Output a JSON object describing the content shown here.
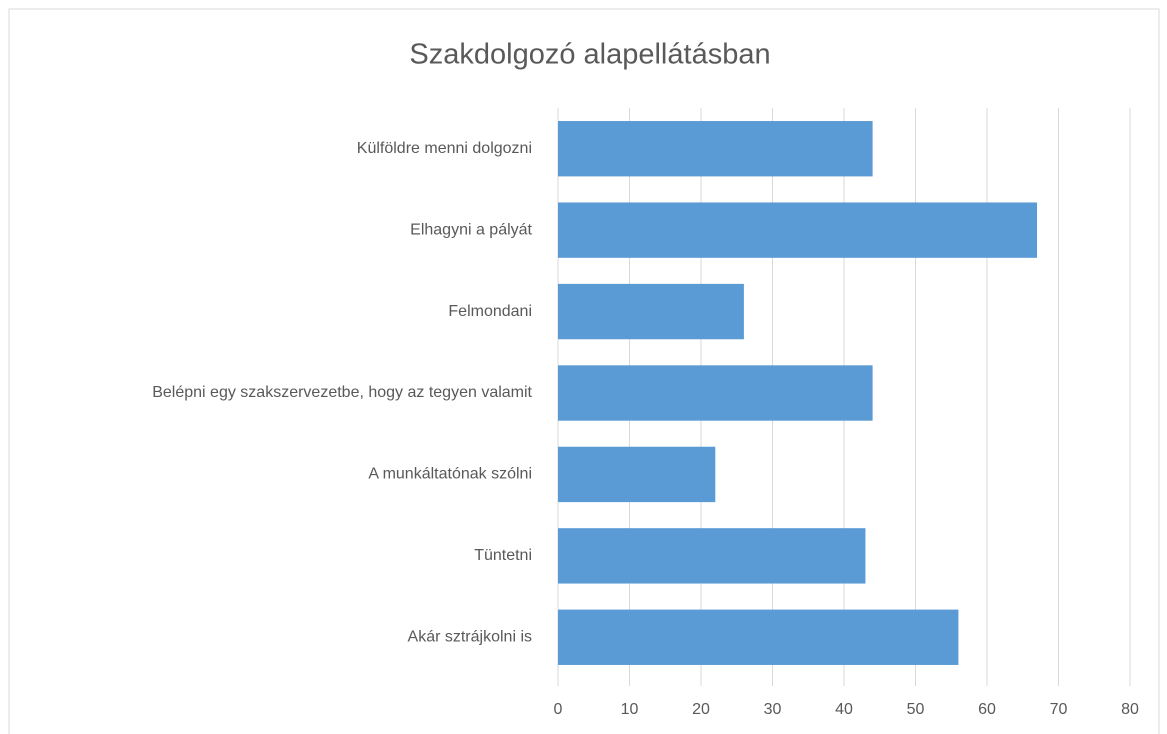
{
  "chart_data": {
    "type": "bar",
    "orientation": "horizontal",
    "title": "Szakdolgozó alapellátásban",
    "categories": [
      "Külföldre menni dolgozni",
      "Elhagyni a pályát",
      "Felmondani",
      "Belépni egy szakszervezetbe, hogy az tegyen valamit",
      "A munkáltatónak szólni",
      "Tüntetni",
      "Akár sztrájkolni is"
    ],
    "values": [
      44,
      67,
      26,
      44,
      22,
      43,
      56
    ],
    "color": "#5b9bd5",
    "xlim": [
      0,
      80
    ],
    "xticks": [
      0,
      10,
      20,
      30,
      40,
      50,
      60,
      70,
      80
    ],
    "grid": true
  }
}
